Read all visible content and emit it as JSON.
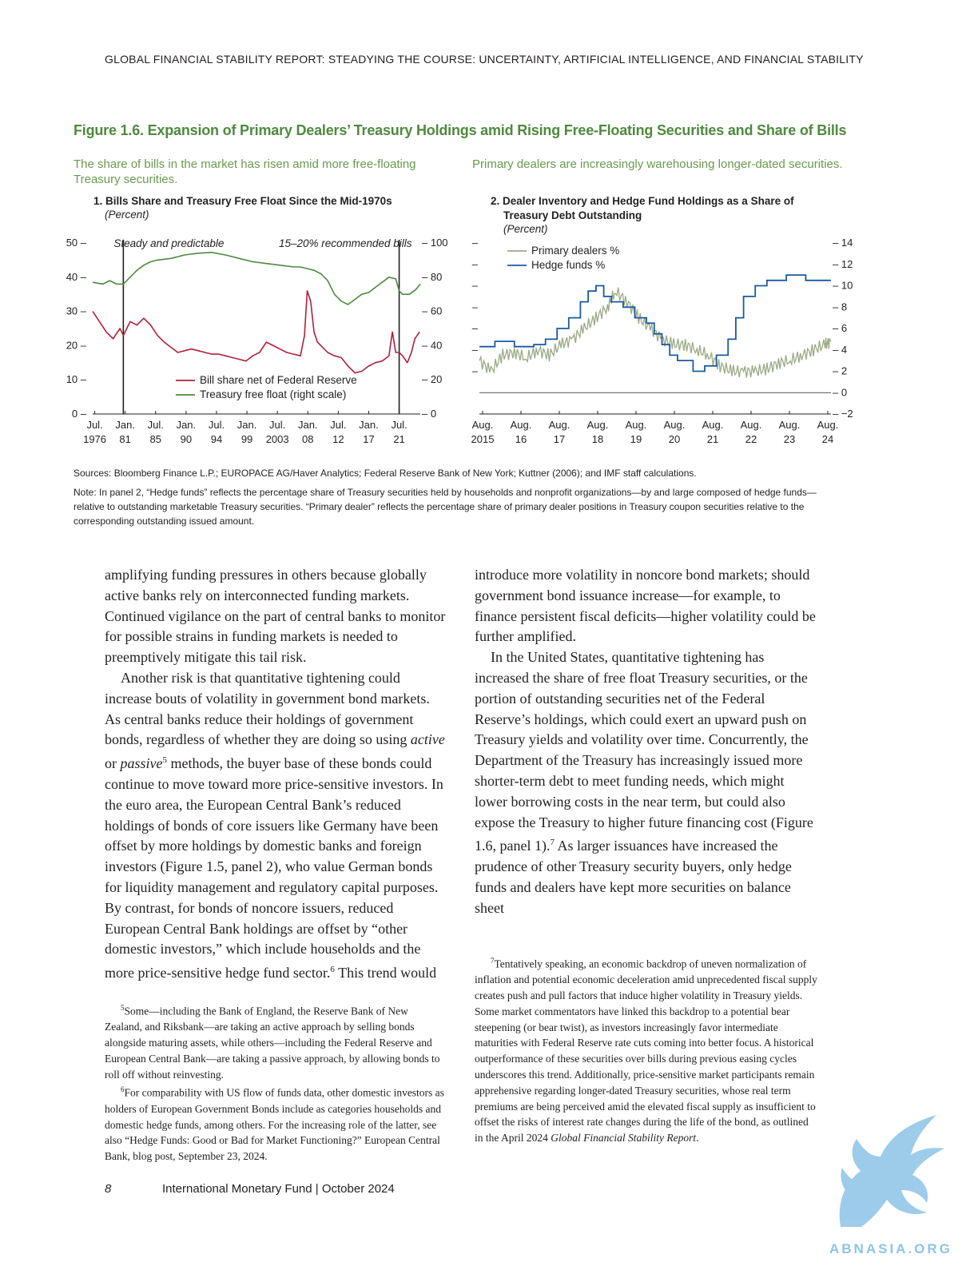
{
  "header": {
    "running_head": "GLOBAL FINANCIAL STABILITY REPORT: STEADYING THE COURSE: UNCERTAINTY, ARTIFICIAL INTELLIGENCE, AND FINANCIAL STABILITY"
  },
  "figure": {
    "title": "Figure 1.6. Expansion of Primary Dealers’ Treasury Holdings amid Rising Free-Floating Securities and Share of Bills",
    "left_subtitle": "The share of bills in the market has risen amid more free-floating Treasury securities.",
    "right_subtitle": "Primary dealers are increasingly warehousing longer-dated securities.",
    "sources": "Sources: Bloomberg Finance L.P.; EUROPACE AG/Haver Analytics; Federal Reserve Bank of New York; Kuttner (2006); and IMF staff calculations.",
    "note": "Note: In panel 2, “Hedge funds” reflects the percentage share of Treasury securities held by households and nonprofit organizations—by and large composed of hedge funds—relative to outstanding marketable Treasury securities. “Primary dealer” reflects the percentage share of primary dealer positions in Treasury coupon securities relative to the corresponding outstanding issued amount."
  },
  "chart_data": [
    {
      "type": "line",
      "title": "1. Bills Share and Treasury Free Float Since the Mid-1970s",
      "unit": "(Percent)",
      "x_tick_labels": [
        [
          "Jul.",
          "1976"
        ],
        [
          "Jan.",
          "81"
        ],
        [
          "Jul.",
          "85"
        ],
        [
          "Jan.",
          "90"
        ],
        [
          "Jul.",
          "94"
        ],
        [
          "Jan.",
          "99"
        ],
        [
          "Jul.",
          "2003"
        ],
        [
          "Jan.",
          "08"
        ],
        [
          "Jul.",
          "12"
        ],
        [
          "Jan.",
          "17"
        ],
        [
          "Jul.",
          "21"
        ]
      ],
      "xlim": [
        1976.5,
        2024.6
      ],
      "y_left_ticks": [
        0,
        10,
        20,
        30,
        40,
        50
      ],
      "ylim_left": [
        0,
        50
      ],
      "y_right_ticks": [
        0,
        20,
        40,
        60,
        80,
        100
      ],
      "ylim_right": [
        0,
        100
      ],
      "annotations": [
        {
          "text": "Steady and predictable",
          "x": 1981.0
        },
        {
          "text": "15–20% recommended bills",
          "x": 2021.5
        }
      ],
      "vlines": [
        1981.0,
        2021.5
      ],
      "legend_position": "bottom-center",
      "series": [
        {
          "name": "Bill share net of Federal Reserve",
          "axis": "left",
          "color": "#b0203a",
          "points": [
            [
              1976.5,
              30
            ],
            [
              1977.5,
              27
            ],
            [
              1978.5,
              24
            ],
            [
              1979.5,
              22
            ],
            [
              1980.5,
              25
            ],
            [
              1981,
              23
            ],
            [
              1982,
              27
            ],
            [
              1983,
              26
            ],
            [
              1984,
              28
            ],
            [
              1985,
              26
            ],
            [
              1986,
              23
            ],
            [
              1987,
              21
            ],
            [
              1988,
              19.5
            ],
            [
              1989,
              18
            ],
            [
              1990,
              18.5
            ],
            [
              1991,
              19
            ],
            [
              1992,
              18.5
            ],
            [
              1993,
              18
            ],
            [
              1994,
              17.5
            ],
            [
              1995,
              17.5
            ],
            [
              1996,
              17
            ],
            [
              1997,
              16.5
            ],
            [
              1998,
              16
            ],
            [
              1999,
              15.5
            ],
            [
              2000,
              17
            ],
            [
              2001,
              18
            ],
            [
              2002,
              21
            ],
            [
              2003,
              20
            ],
            [
              2004,
              19
            ],
            [
              2005,
              18
            ],
            [
              2006,
              17.5
            ],
            [
              2007,
              17
            ],
            [
              2007.6,
              23
            ],
            [
              2008.0,
              36
            ],
            [
              2008.5,
              33
            ],
            [
              2009.0,
              24
            ],
            [
              2009.5,
              21
            ],
            [
              2010,
              20
            ],
            [
              2011,
              18
            ],
            [
              2012,
              17
            ],
            [
              2013,
              16.5
            ],
            [
              2014,
              14
            ],
            [
              2015,
              12
            ],
            [
              2016,
              12.5
            ],
            [
              2017,
              14
            ],
            [
              2018,
              15
            ],
            [
              2019,
              15.5
            ],
            [
              2020.0,
              17
            ],
            [
              2020.5,
              24
            ],
            [
              2021.0,
              18
            ],
            [
              2021.5,
              18
            ],
            [
              2022,
              17
            ],
            [
              2022.7,
              15
            ],
            [
              2023.3,
              18
            ],
            [
              2023.8,
              22
            ],
            [
              2024.5,
              24
            ]
          ]
        },
        {
          "name": "Treasury free float (right scale)",
          "axis": "right",
          "color": "#4e8a3e",
          "points": [
            [
              1976.5,
              77
            ],
            [
              1978,
              76
            ],
            [
              1979,
              78
            ],
            [
              1980,
              76
            ],
            [
              1981,
              76
            ],
            [
              1982,
              80
            ],
            [
              1983,
              84
            ],
            [
              1984,
              87
            ],
            [
              1985,
              89
            ],
            [
              1986,
              90
            ],
            [
              1988,
              91
            ],
            [
              1990,
              93
            ],
            [
              1992,
              94
            ],
            [
              1994,
              94.5
            ],
            [
              1996,
              93
            ],
            [
              1998,
              91
            ],
            [
              2000,
              89
            ],
            [
              2002,
              88
            ],
            [
              2004,
              87
            ],
            [
              2006,
              86
            ],
            [
              2007,
              86
            ],
            [
              2008,
              85
            ],
            [
              2009,
              84
            ],
            [
              2010,
              82
            ],
            [
              2011,
              78
            ],
            [
              2012,
              70
            ],
            [
              2013,
              66
            ],
            [
              2014,
              64
            ],
            [
              2015,
              67
            ],
            [
              2016,
              70
            ],
            [
              2017,
              71
            ],
            [
              2018,
              74
            ],
            [
              2019,
              77
            ],
            [
              2020,
              80
            ],
            [
              2021,
              79
            ],
            [
              2021.5,
              72
            ],
            [
              2022,
              70
            ],
            [
              2023,
              70
            ],
            [
              2024,
              73
            ],
            [
              2024.6,
              76
            ]
          ]
        }
      ]
    },
    {
      "type": "line",
      "title": "2. Dealer Inventory and Hedge Fund Holdings as a Share of Treasury Debt Outstanding",
      "unit": "(Percent)",
      "x_tick_labels": [
        [
          "Aug.",
          "2015"
        ],
        [
          "Aug.",
          "16"
        ],
        [
          "Aug.",
          "17"
        ],
        [
          "Aug.",
          "18"
        ],
        [
          "Aug.",
          "19"
        ],
        [
          "Aug.",
          "20"
        ],
        [
          "Aug.",
          "21"
        ],
        [
          "Aug.",
          "22"
        ],
        [
          "Aug.",
          "23"
        ],
        [
          "Aug.",
          "24"
        ]
      ],
      "xlim": [
        2015.6,
        2024.65
      ],
      "y_right_ticks": [
        -2,
        0,
        2,
        4,
        6,
        8,
        10,
        12,
        14
      ],
      "ylim": [
        -2,
        14
      ],
      "legend_position": "top-left",
      "series": [
        {
          "name": "Primary dealers %",
          "color": "#9aaa86",
          "points": [
            [
              2015.6,
              3
            ],
            [
              2015.9,
              2
            ],
            [
              2016.2,
              3.5
            ],
            [
              2016.5,
              3.8
            ],
            [
              2016.8,
              3.2
            ],
            [
              2017.1,
              4
            ],
            [
              2017.4,
              3.5
            ],
            [
              2017.7,
              4.5
            ],
            [
              2018.0,
              5
            ],
            [
              2018.3,
              6
            ],
            [
              2018.6,
              7
            ],
            [
              2018.9,
              8
            ],
            [
              2019.1,
              9.5
            ],
            [
              2019.4,
              8.5
            ],
            [
              2019.7,
              7
            ],
            [
              2020.0,
              6
            ],
            [
              2020.3,
              5
            ],
            [
              2020.6,
              4.5
            ],
            [
              2020.9,
              4.5
            ],
            [
              2021.2,
              4
            ],
            [
              2021.5,
              3.5
            ],
            [
              2021.8,
              2.5
            ],
            [
              2022.1,
              2
            ],
            [
              2022.4,
              2
            ],
            [
              2022.7,
              2
            ],
            [
              2023.0,
              2.2
            ],
            [
              2023.3,
              2.8
            ],
            [
              2023.6,
              3
            ],
            [
              2023.9,
              3.5
            ],
            [
              2024.2,
              4
            ],
            [
              2024.5,
              4.5
            ],
            [
              2024.65,
              4.8
            ]
          ]
        },
        {
          "name": "Hedge funds %",
          "color": "#1a5aa0",
          "points": [
            [
              2015.6,
              4.3
            ],
            [
              2016.0,
              4.8
            ],
            [
              2016.5,
              4.3
            ],
            [
              2017.0,
              4.5
            ],
            [
              2017.3,
              5
            ],
            [
              2017.6,
              6
            ],
            [
              2017.9,
              7
            ],
            [
              2018.2,
              8.5
            ],
            [
              2018.4,
              9.5
            ],
            [
              2018.6,
              10
            ],
            [
              2018.8,
              9
            ],
            [
              2019.0,
              8.5
            ],
            [
              2019.3,
              8
            ],
            [
              2019.6,
              7
            ],
            [
              2019.9,
              6.5
            ],
            [
              2020.1,
              5.5
            ],
            [
              2020.3,
              4.5
            ],
            [
              2020.5,
              3.5
            ],
            [
              2020.7,
              3
            ],
            [
              2020.9,
              3
            ],
            [
              2021.1,
              2
            ],
            [
              2021.4,
              2.5
            ],
            [
              2021.7,
              3.5
            ],
            [
              2022.0,
              5
            ],
            [
              2022.2,
              7
            ],
            [
              2022.4,
              9
            ],
            [
              2022.7,
              10
            ],
            [
              2023.0,
              10.5
            ],
            [
              2023.5,
              11
            ],
            [
              2024.0,
              10.5
            ],
            [
              2024.65,
              10.5
            ]
          ]
        }
      ]
    }
  ],
  "body": {
    "col1_p1": "amplifying funding pressures in others because globally active banks rely on interconnected funding markets. Continued vigilance on the part of central banks to monitor for possible strains in funding markets is needed to preemptively mitigate this tail risk.",
    "col1_p2_a": "Another risk is that quantitative tightening could increase bouts of volatility in government bond markets. As central banks reduce their holdings of government bonds, regardless of whether they are doing so using ",
    "col1_p2_active": "active",
    "col1_p2_or": " or ",
    "col1_p2_passive": "passive",
    "col1_p2_fn5": "5",
    "col1_p2_b": " methods, the buyer base of these bonds could continue to move toward more price-sensitive investors. In the euro area, the European Central Bank’s reduced holdings of bonds of core issuers like Germany have been offset by more holdings by domestic banks and foreign investors (Figure 1.5, panel 2), who value German bonds for liquidity management and regulatory capital purposes. By contrast, for bonds of noncore issuers, reduced European Central Bank holdings are offset by “other domestic investors,” which include households and the more price-sensitive hedge fund sector.",
    "col1_p2_fn6": "6",
    "col1_p2_c": " This trend would",
    "col2_p1": "introduce more volatility in noncore bond markets; should government bond issuance increase—for example, to finance persistent fiscal deficits—higher volatility could be further amplified.",
    "col2_p2_a": "In the United States, quantitative tightening has increased the share of free float Treasury securities, or the portion of outstanding securities net of the Federal Reserve’s holdings, which could exert an upward push on Treasury yields and volatility over time. Concurrently, the Department of the Treasury has increasingly issued more shorter-term debt to meet funding needs, which might lower borrowing costs in the near term, but could also expose the Treasury to higher future financing cost (Figure 1.6, panel 1).",
    "col2_p2_fn7": "7",
    "col2_p2_b": " As larger issuances have increased the prudence of other Treasury security buyers, only hedge funds and dealers have kept more securities on balance sheet"
  },
  "footnotes": {
    "fn5_num": "5",
    "fn5": "Some—including the Bank of England, the Reserve Bank of New Zealand, and Riksbank—are taking an active approach by selling bonds alongside maturing assets, while others—including the Federal Reserve and European Central Bank—are taking a passive approach, by allowing bonds to roll off without reinvesting.",
    "fn6_num": "6",
    "fn6": "For comparability with US flow of funds data, other domestic investors as holders of European Government Bonds include as categories households and domestic hedge funds, among others. For the increasing role of the latter, see also “Hedge Funds: Good or Bad for Market Functioning?” European Central Bank, blog post, September 23, 2024.",
    "fn7_num": "7",
    "fn7": "Tentatively speaking, an economic backdrop of uneven normalization of inflation and potential economic deceleration amid unprecedented fiscal supply creates push and pull factors that induce higher volatility in Treasury yields. Some market commentators have linked this backdrop to a potential bear steepening (or bear twist), as investors increasingly favor intermediate maturities with Federal Reserve rate cuts coming into better focus. A historical outperformance of these securities over bills during previous easing cycles underscores this trend. Additionally, price-sensitive market participants remain apprehensive regarding longer-dated Treasury securities, whose real term premiums are being perceived amid the elevated fiscal supply as insufficient to offset the risks of interest rate changes during the life of the bond, as outlined in the April 2024 ",
    "fn7_italic": "Global Financial Stability Report",
    "fn7_end": "."
  },
  "footer": {
    "page_number": "8",
    "publisher": "International Monetary Fund | October 2024"
  },
  "watermark": {
    "text": "ABNASIA.ORG",
    "color": "#8cc4e8"
  }
}
